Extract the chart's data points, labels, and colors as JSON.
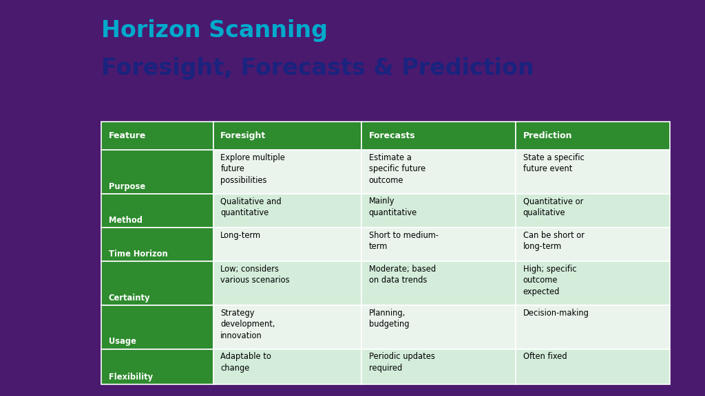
{
  "title_line1": "Horizon Scanning",
  "title_line2": "Foresight, Forecasts & Prediction",
  "title_line1_color": "#00AACC",
  "title_line2_color": "#1a237e",
  "background_color": "#4a1a6e",
  "table_bg": "#ffffff",
  "header_bg": "#2e8b2e",
  "header_text_color": "#ffffff",
  "col0_bg": "#2e8b2e",
  "col0_text_color": "#ffffff",
  "light_row_bg": "#d4edda",
  "lighter_row_bg": "#eaf4ec",
  "body_text_color": "#000000",
  "headers": [
    "Feature",
    "Foresight",
    "Forecasts",
    "Prediction"
  ],
  "rows": [
    [
      "Purpose",
      "Explore multiple\nfuture\npossibilities",
      "Estimate a\nspecific future\noutcome",
      "State a specific\nfuture event"
    ],
    [
      "Method",
      "Qualitative and\nquantitative",
      "Mainly\nquantitative",
      "Quantitative or\nqualitative"
    ],
    [
      "Time Horizon",
      "Long-term",
      "Short to medium-\nterm",
      "Can be short or\nlong-term"
    ],
    [
      "Certainty",
      "Low; considers\nvarious scenarios",
      "Moderate; based\non data trends",
      "High; specific\noutcome\nexpected"
    ],
    [
      "Usage",
      "Strategy\ndevelopment,\ninnovation",
      "Planning,\nbudgeting",
      "Decision-making"
    ],
    [
      "Flexibility",
      "Adaptable to\nchange",
      "Periodic updates\nrequired",
      "Often fixed"
    ]
  ],
  "row_shade": [
    "lighter",
    "light",
    "lighter",
    "light",
    "lighter",
    "light"
  ]
}
